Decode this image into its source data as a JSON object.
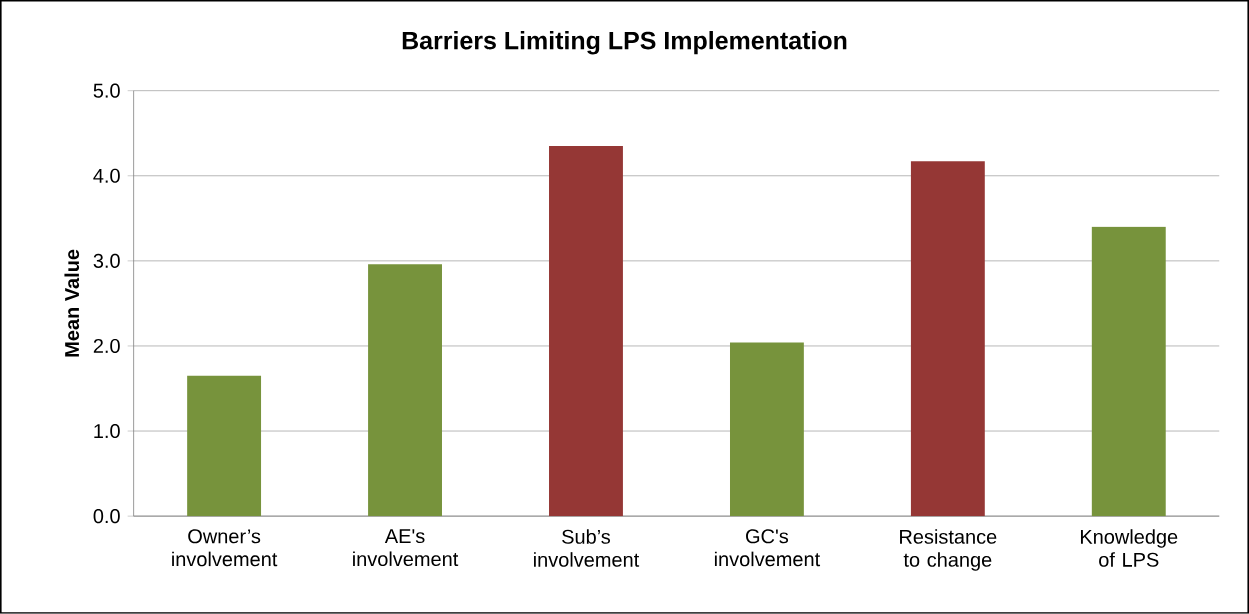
{
  "chart_data": {
    "type": "bar",
    "title": "Barriers  Limiting LPS Implementation",
    "ylabel": "Mean Value",
    "categories": [
      "Owner’s involvement",
      "AE's involvement",
      "Sub’s involvement",
      "GC's involvement",
      "Resistance to change",
      "Knowledge of LPS"
    ],
    "values": [
      1.65,
      2.96,
      4.35,
      2.04,
      4.17,
      3.4
    ],
    "colors": [
      "#77933c",
      "#77933c",
      "#953735",
      "#77933c",
      "#953735",
      "#77933c"
    ],
    "ylim": [
      0,
      5
    ],
    "yticks": [
      {
        "value": 0,
        "label": "0.0"
      },
      {
        "value": 1,
        "label": "1.0"
      },
      {
        "value": 2,
        "label": "2.0"
      },
      {
        "value": 3,
        "label": "3.0"
      },
      {
        "value": 4,
        "label": "4.0"
      },
      {
        "value": 5,
        "label": "5.0"
      }
    ],
    "grid": "y"
  }
}
